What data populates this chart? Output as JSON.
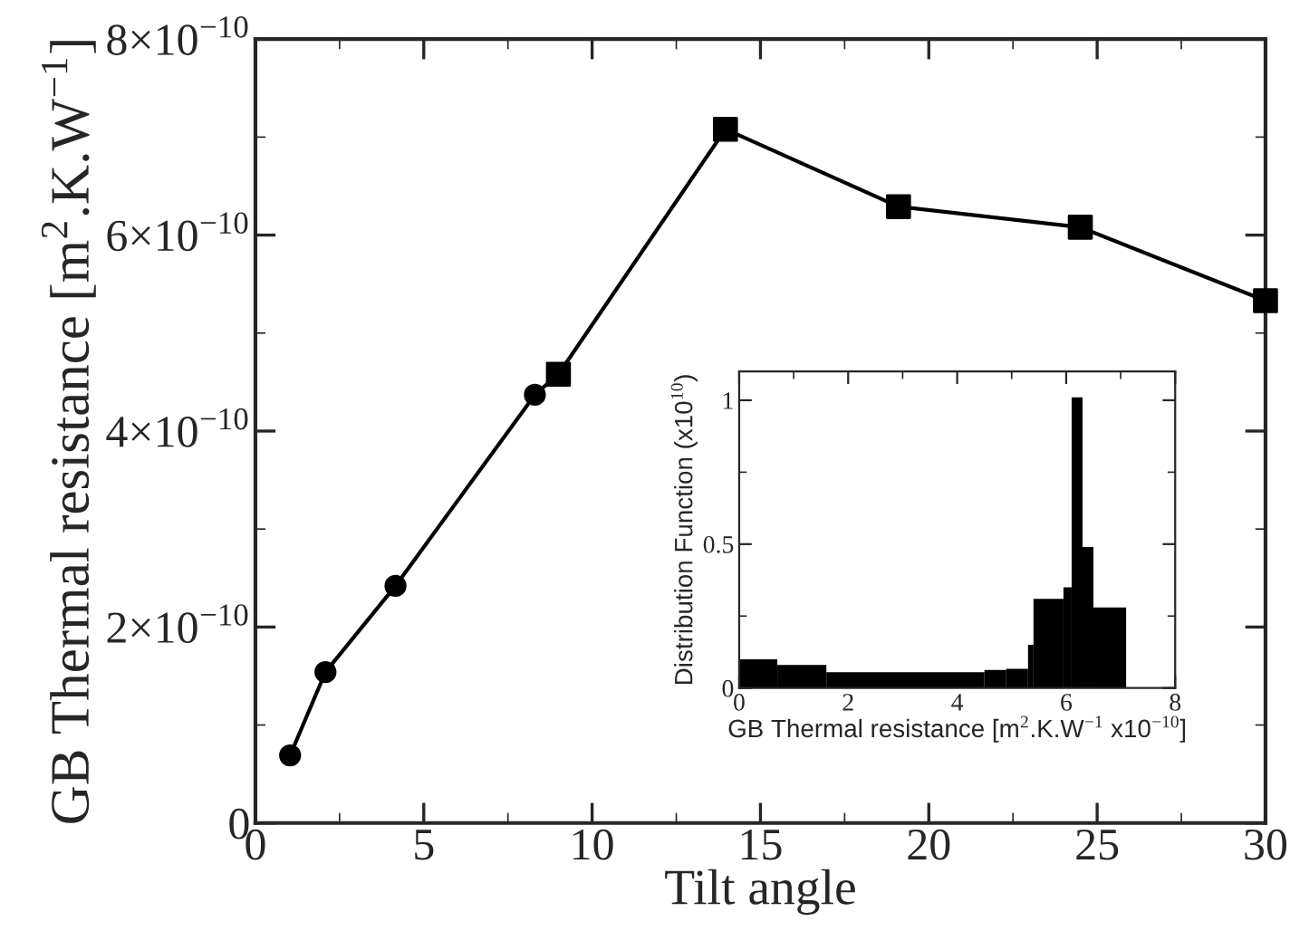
{
  "chart_data": [
    {
      "type": "line",
      "xlabel": "Tilt angle",
      "ylabel": "GB Thermal resistance [m$^{2}$.K.W$^{−1}$]",
      "xlim": [
        0,
        30
      ],
      "xticks": [
        0,
        5,
        10,
        15,
        20,
        25,
        30
      ],
      "ylim": [
        0,
        8e-10
      ],
      "yticks": [
        {
          "value": 0,
          "label": "0"
        },
        {
          "value": 2e-10,
          "label": "2×10$^{−10}$"
        },
        {
          "value": 4e-10,
          "label": "4×10$^{−10}$"
        },
        {
          "value": 6e-10,
          "label": "6×10$^{−10}$"
        },
        {
          "value": 8e-10,
          "label": "8×10$^{−10}$"
        }
      ],
      "grid": false,
      "legend": false,
      "series": [
        {
          "type": "line",
          "color": "#000000",
          "marker": "none",
          "line_style": "solid",
          "x": [
            1.03,
            2.08,
            4.16,
            8.3,
            9.0,
            13.96,
            19.1,
            24.5,
            30
          ],
          "values": [
            6.9e-11,
            1.54e-10,
            2.42e-10,
            4.37e-10,
            4.58e-10,
            7.08e-10,
            6.29e-10,
            6.08e-10,
            5.33e-10
          ]
        },
        {
          "type": "scatter",
          "color": "#000000",
          "marker": "circle",
          "x": [
            1.03,
            2.08,
            4.16,
            8.3
          ],
          "values": [
            6.9e-11,
            1.54e-10,
            2.42e-10,
            4.37e-10
          ]
        },
        {
          "type": "scatter",
          "color": "#000000",
          "marker": "square",
          "x": [
            9.0,
            13.96,
            19.1,
            24.5,
            30
          ],
          "values": [
            4.58e-10,
            7.08e-10,
            6.29e-10,
            6.08e-10,
            5.33e-10
          ]
        }
      ]
    },
    {
      "type": "histogram",
      "xlabel": "GB Thermal resistance [m$^{2}$.K.W$^{−1}$ x10$^{−10}$]",
      "ylabel": "Distribution Function (x10$^{10}$)",
      "xlim": [
        0,
        8
      ],
      "xticks": [
        0,
        2,
        4,
        6,
        8
      ],
      "ylim": [
        0,
        1.1
      ],
      "yticks": [
        0,
        0.5,
        1
      ],
      "grid": false,
      "color": "#000000",
      "bins": [
        0,
        0.7,
        1.6,
        4.5,
        4.9,
        5.3,
        5.4,
        5.95,
        6.1,
        6.3,
        6.5,
        7.1
      ],
      "values": [
        0.1,
        0.08,
        0.055,
        0.063,
        0.067,
        0.15,
        0.31,
        0.35,
        1.01,
        0.49,
        0.28
      ]
    }
  ]
}
